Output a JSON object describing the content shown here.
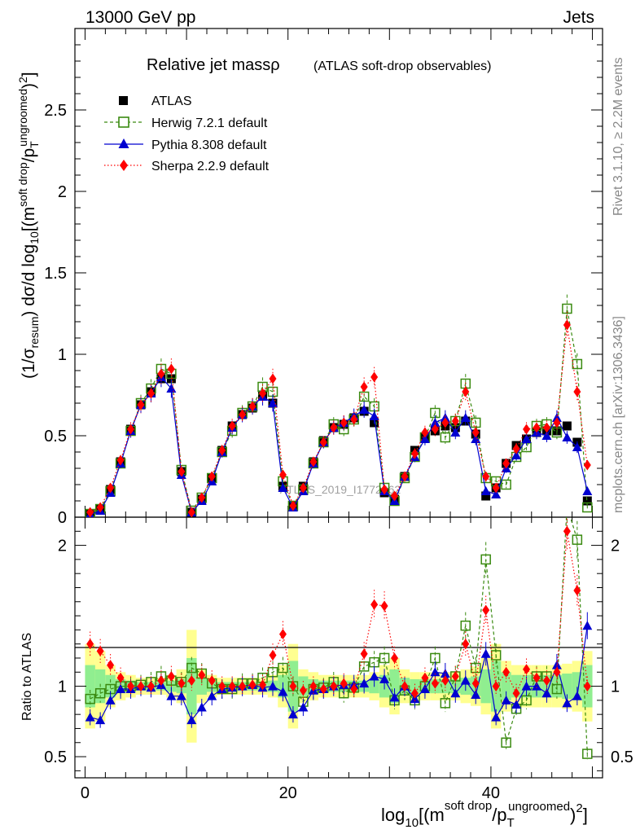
{
  "header": {
    "left": "13000 GeV pp",
    "right": "Jets"
  },
  "side_labels": {
    "rivet": "Rivet 3.1.10, ≥ 2.2M events",
    "mcplots": "mcplots.cern.ch [arXiv:1306.3436]"
  },
  "watermark": "ATLAS_2019_I1772062",
  "title": {
    "main": "Relative jet massρ",
    "sub": "(ATLAS soft-drop observables)"
  },
  "labels": {
    "ylabel_main": "(1/σresum) dσ/d log10[(m soft drop/pT ungroomed)2]",
    "ylabel_ratio": "Ratio to ATLAS",
    "xlabel": "log10[(m soft drop/pT ungroomed)2]"
  },
  "colors": {
    "atlas": "#000000",
    "herwig": "#3a8a10",
    "pythia": "#0000d0",
    "sherpa": "#ff0000",
    "band_inner": "#90ee90",
    "band_outer": "#ffff90"
  },
  "chart_data": [
    {
      "type": "scatter",
      "panel": "main",
      "xlim": [
        -1,
        51
      ],
      "ylim": [
        0,
        3
      ],
      "yticks": [
        0,
        0.5,
        1,
        1.5,
        2,
        2.5
      ],
      "ytick_labels": [
        "0",
        "0.5",
        "1",
        "1.5",
        "2",
        "2.5"
      ],
      "x": [
        0.5,
        1.5,
        2.5,
        3.5,
        4.5,
        5.5,
        6.5,
        7.5,
        8.5,
        9.5,
        10.5,
        11.5,
        12.5,
        13.5,
        14.5,
        15.5,
        16.5,
        17.5,
        18.5,
        19.5,
        20.5,
        21.5,
        22.5,
        23.5,
        24.5,
        25.5,
        26.5,
        27.5,
        28.5,
        29.5,
        30.5,
        31.5,
        32.5,
        33.5,
        34.5,
        35.5,
        36.5,
        37.5,
        38.5,
        39.5,
        40.5,
        41.5,
        42.5,
        43.5,
        44.5,
        45.5,
        46.5,
        47.5,
        48.5,
        49.5
      ],
      "series": [
        {
          "name": "ATLAS",
          "marker": "square",
          "values": [
            0.02,
            0.05,
            0.17,
            0.34,
            0.54,
            0.69,
            0.77,
            0.85,
            0.85,
            0.28,
            0.03,
            0.11,
            0.24,
            0.41,
            0.56,
            0.63,
            0.67,
            0.75,
            0.7,
            0.19,
            0.07,
            0.19,
            0.34,
            0.47,
            0.55,
            0.57,
            0.61,
            0.65,
            0.58,
            0.15,
            0.11,
            0.25,
            0.41,
            0.49,
            0.53,
            0.56,
            0.55,
            0.59,
            0.51,
            0.13,
            0.18,
            0.33,
            0.44,
            0.48,
            0.52,
            0.53,
            0.53,
            0.56,
            0.46,
            0.1
          ]
        },
        {
          "name": "Herwig 7.2.1 default",
          "marker": "open-square",
          "values": [
            0.02,
            0.05,
            0.16,
            0.33,
            0.53,
            0.7,
            0.79,
            0.91,
            0.88,
            0.29,
            0.04,
            0.12,
            0.24,
            0.4,
            0.53,
            0.64,
            0.68,
            0.8,
            0.77,
            0.22,
            0.07,
            0.17,
            0.33,
            0.46,
            0.57,
            0.54,
            0.6,
            0.74,
            0.68,
            0.18,
            0.1,
            0.24,
            0.37,
            0.49,
            0.64,
            0.49,
            0.59,
            0.82,
            0.58,
            0.24,
            0.22,
            0.2,
            0.37,
            0.43,
            0.56,
            0.57,
            0.52,
            1.28,
            0.94,
            0.06
          ]
        },
        {
          "name": "Pythia 8.308 default",
          "marker": "triangle",
          "values": [
            0.015,
            0.04,
            0.15,
            0.33,
            0.53,
            0.69,
            0.76,
            0.86,
            0.79,
            0.26,
            0.03,
            0.1,
            0.22,
            0.4,
            0.55,
            0.63,
            0.68,
            0.74,
            0.7,
            0.18,
            0.06,
            0.16,
            0.33,
            0.46,
            0.55,
            0.58,
            0.62,
            0.66,
            0.62,
            0.16,
            0.1,
            0.25,
            0.37,
            0.48,
            0.58,
            0.61,
            0.52,
            0.61,
            0.48,
            0.16,
            0.14,
            0.3,
            0.38,
            0.48,
            0.52,
            0.5,
            0.61,
            0.49,
            0.43,
            0.16
          ]
        },
        {
          "name": "Sherpa 2.2.9 default",
          "marker": "diamond",
          "values": [
            0.03,
            0.06,
            0.18,
            0.35,
            0.54,
            0.69,
            0.76,
            0.88,
            0.91,
            0.28,
            0.03,
            0.12,
            0.25,
            0.41,
            0.56,
            0.63,
            0.68,
            0.76,
            0.85,
            0.26,
            0.07,
            0.18,
            0.34,
            0.46,
            0.55,
            0.58,
            0.6,
            0.8,
            0.86,
            0.17,
            0.13,
            0.25,
            0.39,
            0.52,
            0.54,
            0.58,
            0.59,
            0.77,
            0.52,
            0.25,
            0.18,
            0.33,
            0.42,
            0.54,
            0.55,
            0.55,
            0.58,
            1.18,
            0.77,
            0.32
          ]
        }
      ]
    },
    {
      "type": "scatter",
      "panel": "ratio",
      "ylabel": "Ratio to ATLAS",
      "xlabel": "log10[(m soft drop/pT ungroomed)2]",
      "xlim": [
        -1,
        51
      ],
      "ylim": [
        0.35,
        2.2
      ],
      "xticks": [
        0,
        20,
        40
      ],
      "xtick_labels": [
        "0",
        "20",
        "40"
      ],
      "yticks": [
        0.5,
        1,
        2
      ],
      "ytick_labels": [
        "0.5",
        "1",
        "2"
      ],
      "x": [
        0.5,
        1.5,
        2.5,
        3.5,
        4.5,
        5.5,
        6.5,
        7.5,
        8.5,
        9.5,
        10.5,
        11.5,
        12.5,
        13.5,
        14.5,
        15.5,
        16.5,
        17.5,
        18.5,
        19.5,
        20.5,
        21.5,
        22.5,
        23.5,
        24.5,
        25.5,
        26.5,
        27.5,
        28.5,
        29.5,
        30.5,
        31.5,
        32.5,
        33.5,
        34.5,
        35.5,
        36.5,
        37.5,
        38.5,
        39.5,
        40.5,
        41.5,
        42.5,
        43.5,
        44.5,
        45.5,
        46.5,
        47.5,
        48.5,
        49.5
      ],
      "band_inner": [
        0.15,
        0.12,
        0.08,
        0.05,
        0.04,
        0.03,
        0.03,
        0.03,
        0.04,
        0.05,
        0.2,
        0.06,
        0.04,
        0.03,
        0.03,
        0.03,
        0.03,
        0.03,
        0.04,
        0.08,
        0.18,
        0.07,
        0.05,
        0.04,
        0.04,
        0.04,
        0.04,
        0.04,
        0.05,
        0.08,
        0.12,
        0.06,
        0.05,
        0.05,
        0.05,
        0.05,
        0.05,
        0.06,
        0.07,
        0.12,
        0.18,
        0.1,
        0.08,
        0.08,
        0.08,
        0.08,
        0.08,
        0.09,
        0.1,
        0.15
      ],
      "band_outer": [
        0.3,
        0.25,
        0.15,
        0.1,
        0.08,
        0.06,
        0.06,
        0.06,
        0.08,
        0.12,
        0.4,
        0.12,
        0.08,
        0.06,
        0.06,
        0.06,
        0.06,
        0.06,
        0.08,
        0.15,
        0.3,
        0.12,
        0.1,
        0.08,
        0.08,
        0.08,
        0.08,
        0.08,
        0.1,
        0.15,
        0.2,
        0.12,
        0.1,
        0.1,
        0.1,
        0.1,
        0.1,
        0.12,
        0.14,
        0.2,
        0.3,
        0.18,
        0.15,
        0.15,
        0.15,
        0.15,
        0.15,
        0.16,
        0.18,
        0.25
      ],
      "series": [
        {
          "name": "Herwig 7.2.1 default",
          "values": [
            0.91,
            0.95,
            0.98,
            1.0,
            1.0,
            1.01,
            1.03,
            1.07,
            1.04,
            1.03,
            1.13,
            1.09,
            1.02,
            0.98,
            0.98,
            1.02,
            1.02,
            1.06,
            1.1,
            1.13,
            1.0,
            0.89,
            0.98,
            0.99,
            1.03,
            0.95,
            0.99,
            1.14,
            1.17,
            1.2,
            0.9,
            0.97,
            0.9,
            1.0,
            1.2,
            0.88,
            1.07,
            1.43,
            1.13,
            1.9,
            1.22,
            0.6,
            0.84,
            0.9,
            1.07,
            1.07,
            0.98,
            2.28,
            2.04,
            0.52
          ]
        },
        {
          "name": "Pythia 8.308 default",
          "values": [
            0.78,
            0.76,
            0.9,
            0.98,
            0.98,
            1.0,
            0.99,
            1.01,
            0.93,
            0.93,
            0.76,
            0.85,
            0.93,
            0.98,
            0.99,
            1.0,
            1.01,
            0.99,
            1.0,
            0.96,
            0.8,
            0.85,
            0.97,
            0.98,
            1.0,
            1.01,
            1.01,
            1.02,
            1.07,
            1.05,
            0.92,
            1.0,
            0.91,
            0.98,
            1.1,
            1.09,
            0.95,
            1.04,
            0.94,
            1.23,
            0.78,
            0.9,
            0.87,
            1.0,
            1.0,
            0.95,
            1.15,
            0.88,
            0.93,
            1.43
          ]
        },
        {
          "name": "Sherpa 2.2.9 default",
          "values": [
            1.3,
            1.25,
            1.15,
            1.06,
            1.0,
            1.0,
            1.0,
            1.04,
            1.07,
            1.02,
            1.04,
            1.08,
            1.04,
            1.0,
            1.0,
            1.0,
            1.01,
            1.01,
            1.22,
            1.37,
            1.0,
            0.97,
            1.0,
            0.98,
            1.0,
            1.02,
            0.98,
            1.23,
            1.58,
            1.57,
            1.2,
            1.0,
            0.95,
            1.06,
            1.02,
            1.04,
            1.07,
            1.3,
            1.02,
            1.54,
            1.0,
            1.1,
            0.95,
            1.12,
            1.06,
            1.04,
            1.1,
            2.1,
            1.68,
            1.0
          ]
        }
      ]
    }
  ]
}
